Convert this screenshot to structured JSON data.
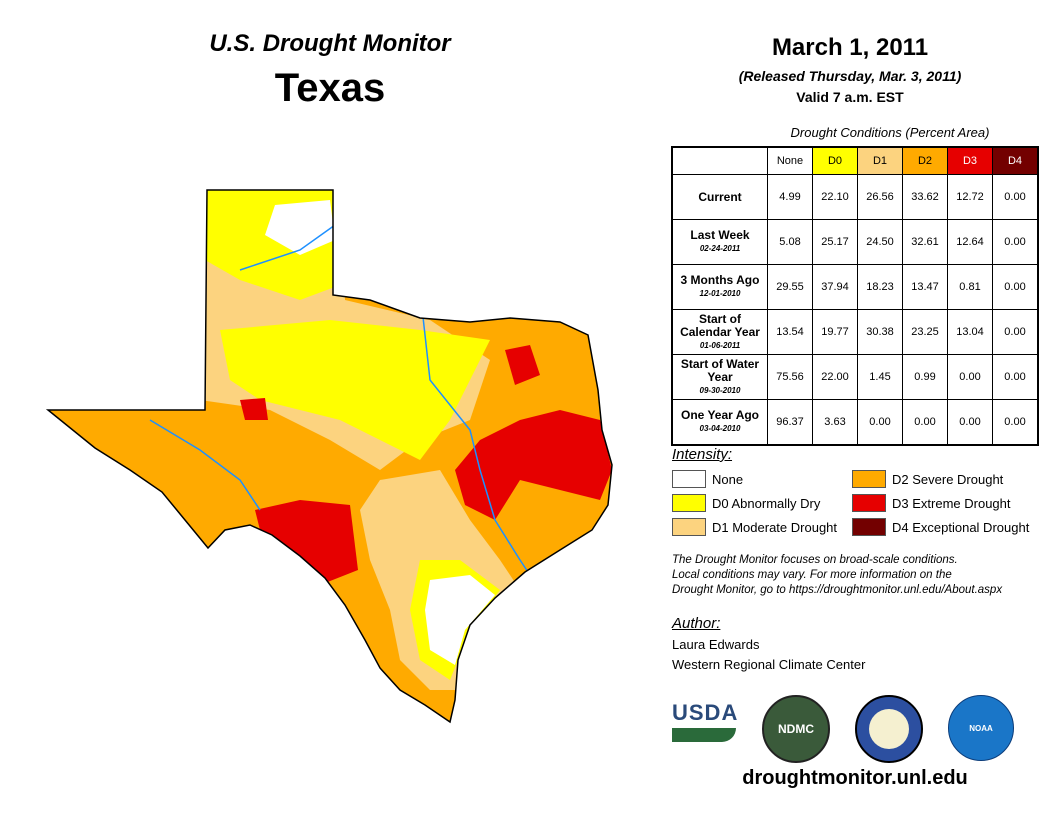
{
  "header": {
    "program": "U.S. Drought Monitor",
    "state": "Texas",
    "date": "March 1, 2011",
    "released": "(Released Thursday, Mar. 3, 2011)",
    "valid": "Valid 7 a.m. EST"
  },
  "table": {
    "caption": "Drought Conditions (Percent Area)",
    "columns": [
      "None",
      "D0",
      "D1",
      "D2",
      "D3",
      "D4"
    ],
    "rows": [
      {
        "label": "Current",
        "date": "",
        "values": [
          "4.99",
          "22.10",
          "26.56",
          "33.62",
          "12.72",
          "0.00"
        ]
      },
      {
        "label": "Last Week",
        "date": "02-24-2011",
        "values": [
          "5.08",
          "25.17",
          "24.50",
          "32.61",
          "12.64",
          "0.00"
        ]
      },
      {
        "label": "3 Months Ago",
        "date": "12-01-2010",
        "values": [
          "29.55",
          "37.94",
          "18.23",
          "13.47",
          "0.81",
          "0.00"
        ]
      },
      {
        "label": "Start of Calendar Year",
        "date": "01-06-2011",
        "values": [
          "13.54",
          "19.77",
          "30.38",
          "23.25",
          "13.04",
          "0.00"
        ]
      },
      {
        "label": "Start of Water Year",
        "date": "09-30-2010",
        "values": [
          "75.56",
          "22.00",
          "1.45",
          "0.99",
          "0.00",
          "0.00"
        ]
      },
      {
        "label": "One Year Ago",
        "date": "03-04-2010",
        "values": [
          "96.37",
          "3.63",
          "0.00",
          "0.00",
          "0.00",
          "0.00"
        ]
      }
    ]
  },
  "legend": {
    "title": "Intensity:",
    "items": [
      {
        "label": "None",
        "color": "#ffffff"
      },
      {
        "label": "D0 Abnormally Dry",
        "color": "#ffff00"
      },
      {
        "label": "D1 Moderate Drought",
        "color": "#fcd37f"
      },
      {
        "label": "D2 Severe Drought",
        "color": "#ffaa00"
      },
      {
        "label": "D3 Extreme Drought",
        "color": "#e60000"
      },
      {
        "label": "D4 Exceptional Drought",
        "color": "#730000"
      }
    ]
  },
  "note": [
    "The Drought Monitor focuses on broad-scale conditions.",
    "Local conditions may vary. For more information on the",
    "Drought Monitor, go to https://droughtmonitor.unl.edu/About.aspx"
  ],
  "author": {
    "title": "Author:",
    "name": "Laura Edwards",
    "org": "Western Regional Climate Center"
  },
  "logos": {
    "usda": "USDA",
    "ndmc": "NDMC",
    "noaa": "NOAA"
  },
  "footer_url": "droughtmonitor.unl.edu"
}
